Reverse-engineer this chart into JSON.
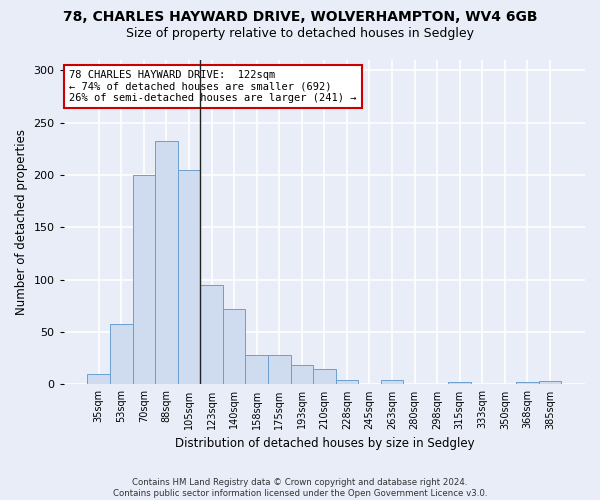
{
  "title1": "78, CHARLES HAYWARD DRIVE, WOLVERHAMPTON, WV4 6GB",
  "title2": "Size of property relative to detached houses in Sedgley",
  "xlabel": "Distribution of detached houses by size in Sedgley",
  "ylabel": "Number of detached properties",
  "categories": [
    "35sqm",
    "53sqm",
    "70sqm",
    "88sqm",
    "105sqm",
    "123sqm",
    "140sqm",
    "158sqm",
    "175sqm",
    "193sqm",
    "210sqm",
    "228sqm",
    "245sqm",
    "263sqm",
    "280sqm",
    "298sqm",
    "315sqm",
    "333sqm",
    "350sqm",
    "368sqm",
    "385sqm"
  ],
  "values": [
    10,
    58,
    200,
    233,
    205,
    95,
    72,
    28,
    28,
    19,
    15,
    4,
    0,
    4,
    0,
    0,
    2,
    0,
    0,
    2,
    3
  ],
  "bar_color": "#cfdcef",
  "bar_edge_color": "#6b9fcf",
  "vline_x_idx": 5,
  "annotation_line1": "78 CHARLES HAYWARD DRIVE:  122sqm",
  "annotation_line2": "← 74% of detached houses are smaller (692)",
  "annotation_line3": "26% of semi-detached houses are larger (241) →",
  "annotation_box_color": "white",
  "annotation_box_edge_color": "#cc0000",
  "footer1": "Contains HM Land Registry data © Crown copyright and database right 2024.",
  "footer2": "Contains public sector information licensed under the Open Government Licence v3.0.",
  "ylim": [
    0,
    310
  ],
  "yticks": [
    0,
    50,
    100,
    150,
    200,
    250,
    300
  ],
  "background_color": "#e8edf8",
  "grid_color": "white",
  "title1_fontsize": 10,
  "title2_fontsize": 9
}
